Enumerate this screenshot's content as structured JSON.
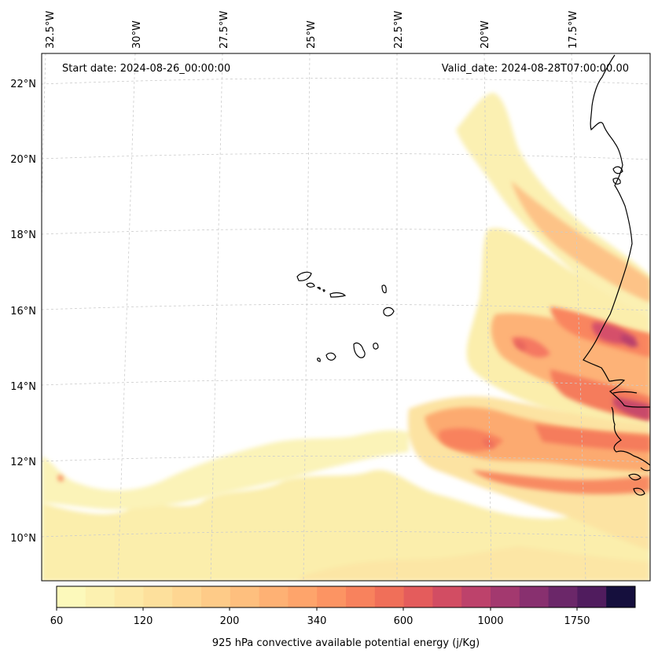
{
  "header": {
    "start_date": "Start date: 2024-08-26_00:00:00",
    "valid_date": "Valid_date: 2024-08-28T07:00:00.00"
  },
  "grid": {
    "lat_labels": [
      "22°N",
      "20°N",
      "18°N",
      "16°N",
      "14°N",
      "12°N",
      "10°N"
    ],
    "lon_labels": [
      "32.5°W",
      "30°W",
      "27.5°W",
      "25°W",
      "22.5°W",
      "20°W",
      "17.5°W"
    ]
  },
  "colorbar": {
    "title": "925 hPa convective available potential energy (j/Kg)",
    "tick_labels": [
      "60",
      "120",
      "200",
      "340",
      "600",
      "1000",
      "1750"
    ],
    "colors": [
      "#fcf9bb",
      "#fcf1b0",
      "#fde9a6",
      "#fde09c",
      "#fed692",
      "#fecb88",
      "#febf7e",
      "#feb174",
      "#fea46b",
      "#fc9463",
      "#f8825d",
      "#f06f59",
      "#e45c5c",
      "#d24d63",
      "#bd426b",
      "#a3396f",
      "#88306f",
      "#6b2769",
      "#501c5e",
      "#150f3d"
    ]
  },
  "map": {
    "ocean_color": "#ffffff",
    "coastline_color": "#000000",
    "gridline_color": "#cccccc"
  }
}
